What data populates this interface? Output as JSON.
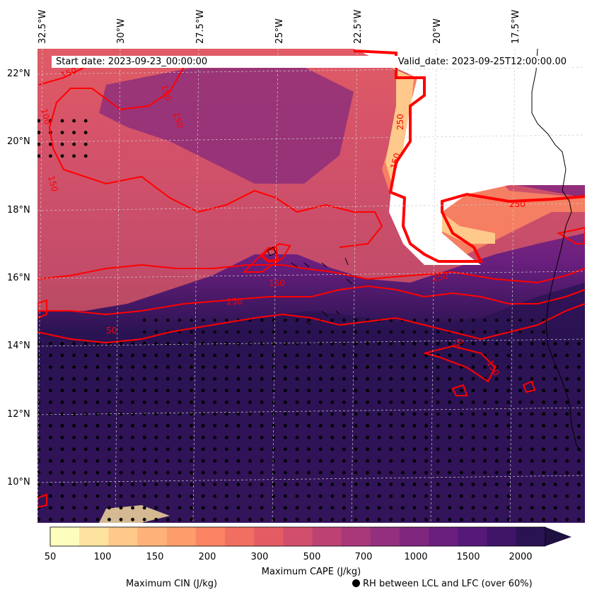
{
  "map": {
    "start_label": "Start date: 2023-09-23_00:00:00",
    "valid_label": "Valid_date: 2023-09-25T12:00:00.00",
    "lon_labels": [
      "32.5°W",
      "30°W",
      "27.5°W",
      "25°W",
      "22.5°W",
      "20°W",
      "17.5°W"
    ],
    "lat_labels": [
      "22°N",
      "20°N",
      "18°N",
      "16°N",
      "14°N",
      "12°N",
      "10°N"
    ],
    "contour_labels": [
      "150",
      "150",
      "100",
      "150",
      "150",
      "250",
      "150",
      "250",
      "250",
      "150",
      "150",
      "50",
      "150",
      "50"
    ]
  },
  "colorbar": {
    "title": "Maximum CAPE (J/kg)",
    "ticks": [
      "50",
      "100",
      "150",
      "200",
      "300",
      "500",
      "700",
      "1000",
      "1500",
      "2000"
    ],
    "colors": [
      "#fdfdbe",
      "#fde2a0",
      "#fec98a",
      "#feb279",
      "#fd9d6c",
      "#fa8463",
      "#f16f60",
      "#e35c64",
      "#d14e6c",
      "#bc4274",
      "#a8377a",
      "#932f7e",
      "#7f277f",
      "#6a1f7e",
      "#551a79",
      "#3f1467",
      "#2a1352",
      "#1e103f"
    ]
  },
  "legend": {
    "cin_label": "Maximum CIN (J/kg)",
    "cin_color": "#ff0000",
    "rh_label": "RH between LCL and LFC (over 60%)"
  },
  "chart_data": {
    "type": "heatmap",
    "variable": "Maximum CAPE (J/kg)",
    "levels": [
      50,
      100,
      150,
      200,
      300,
      500,
      700,
      1000,
      1500,
      2000
    ],
    "extend": "max",
    "lon_range": [
      -33.2,
      -14.3
    ],
    "lat_range": [
      8.8,
      22.8
    ],
    "overlays": [
      "Maximum CIN (J/kg)",
      "RH between LCL and LFC (over 60%)"
    ]
  }
}
